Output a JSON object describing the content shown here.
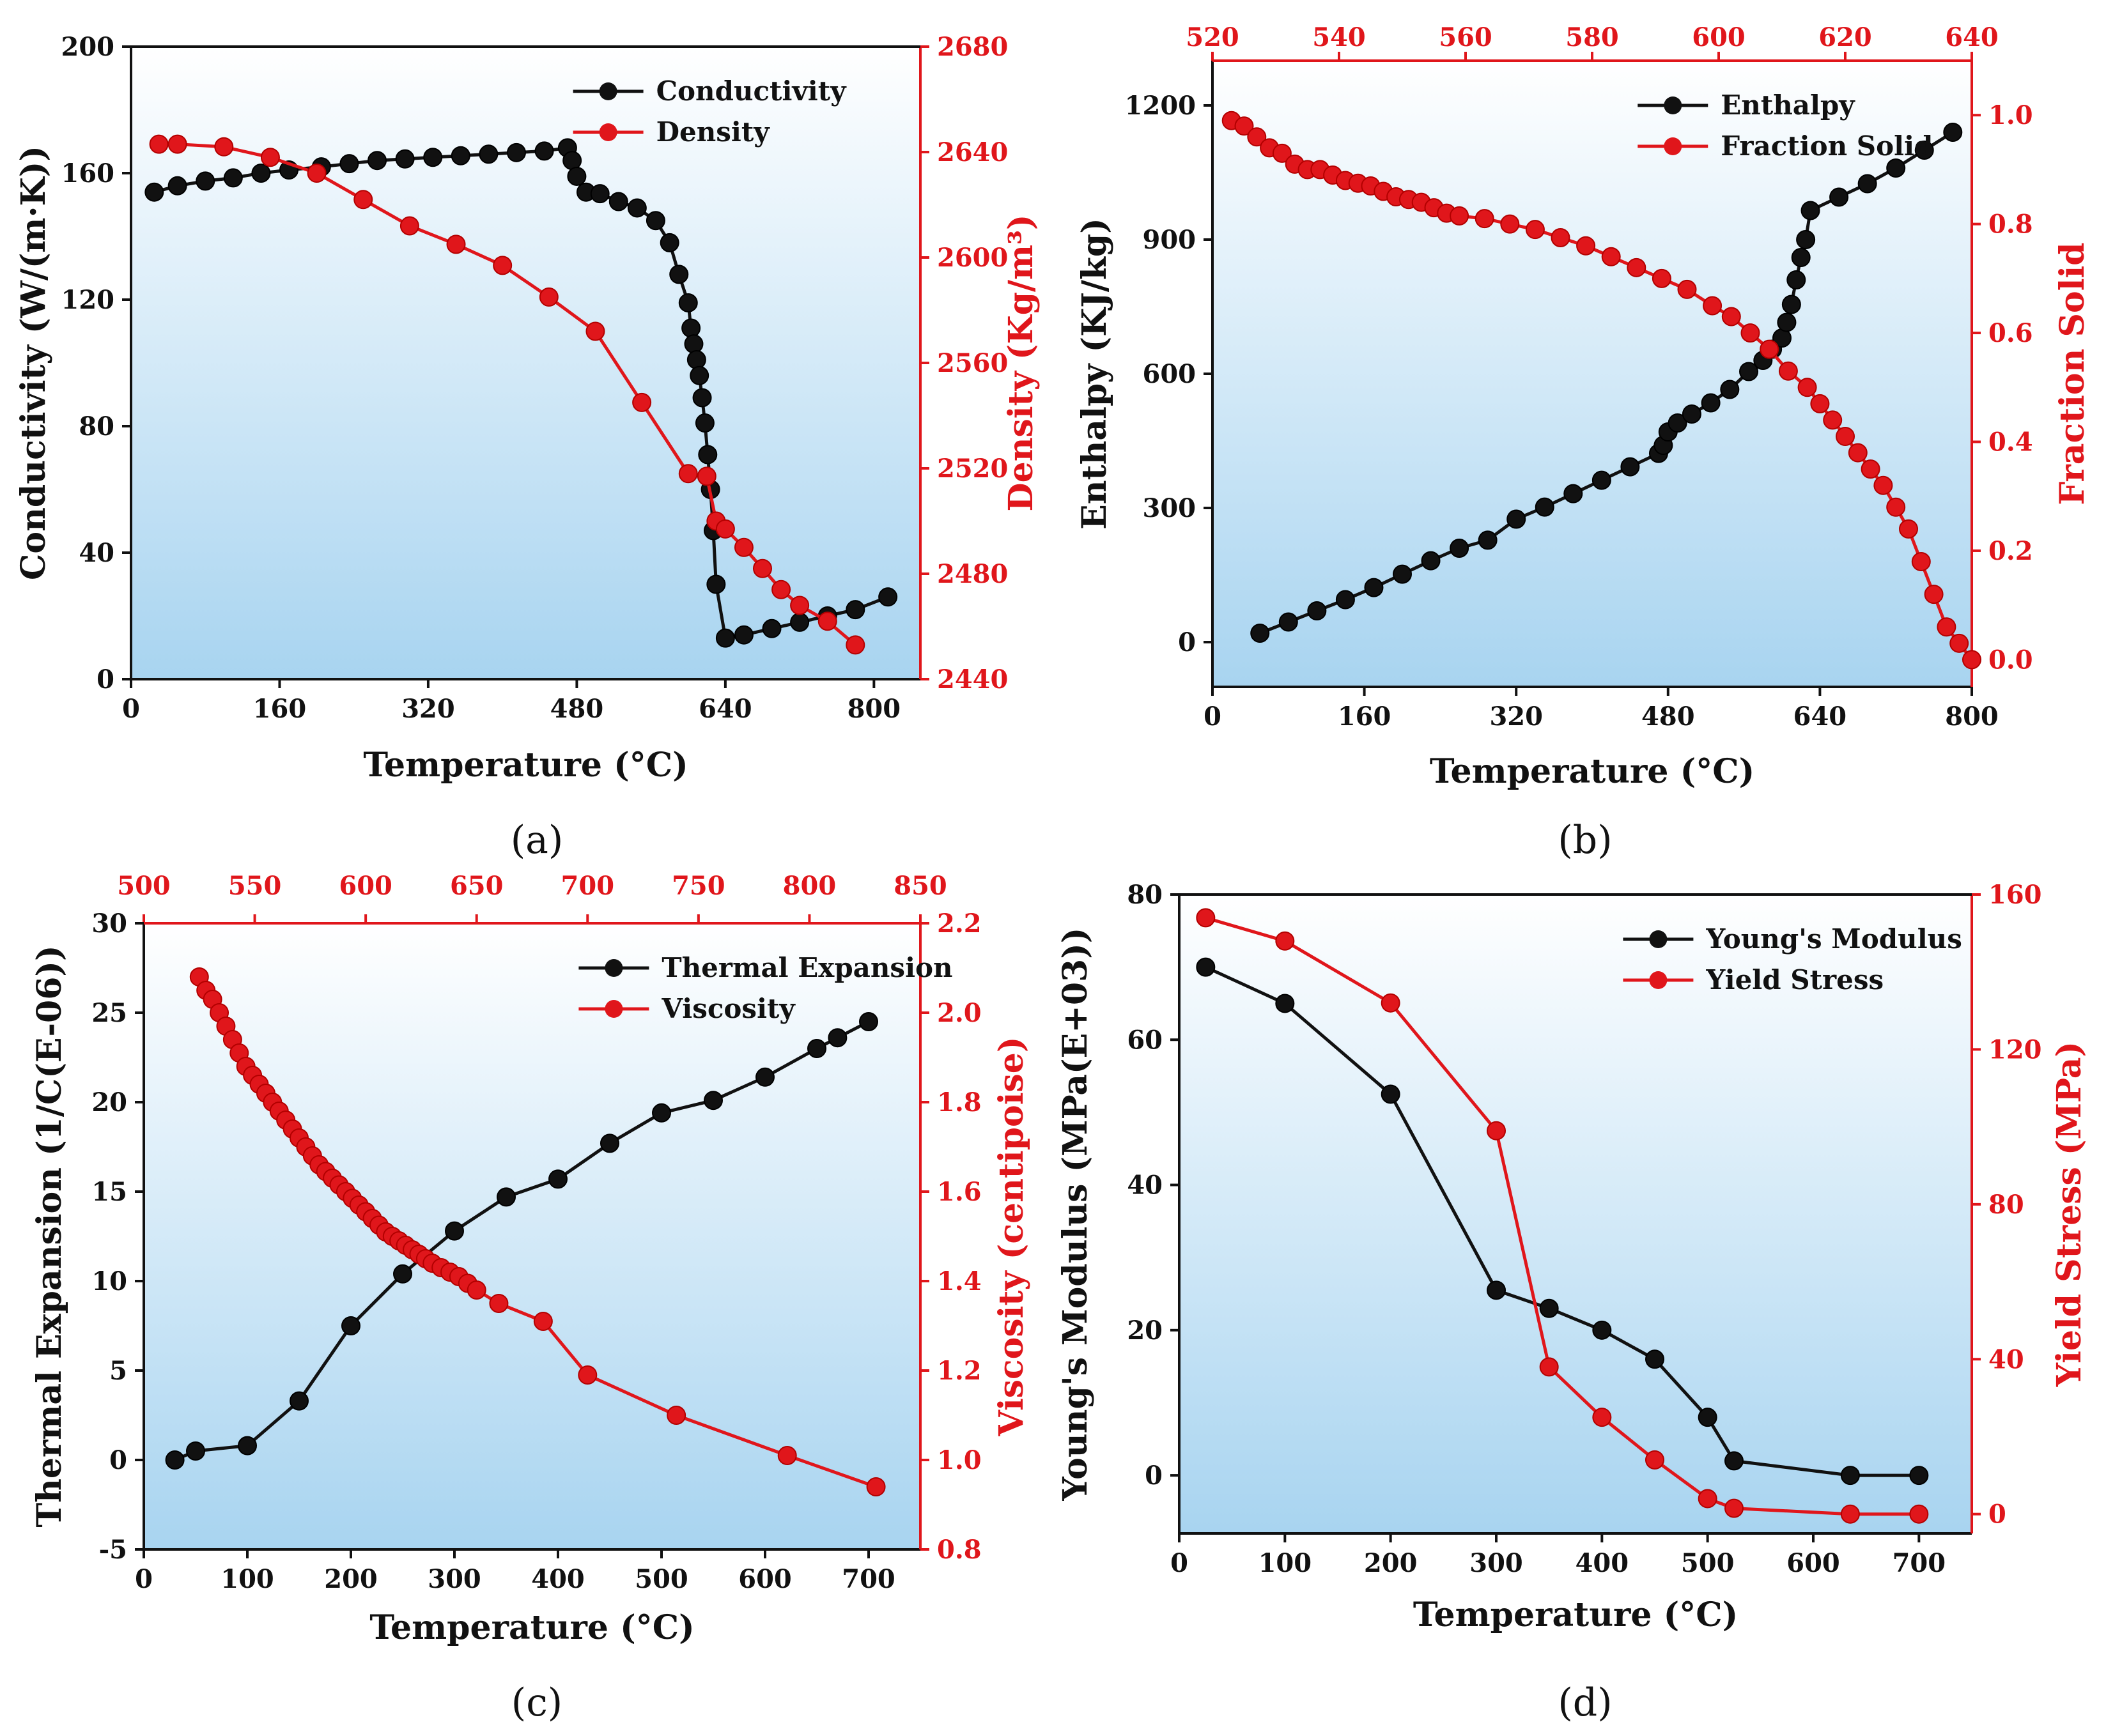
{
  "colors": {
    "left": "#111111",
    "right": "#e0161b",
    "bg_top": "#ffffff",
    "bg_bottom": "#a8d4f0"
  },
  "chart_data": [
    {
      "panel": "a",
      "caption": "(a)",
      "type": "line",
      "xlabel": "Temperature (°C)",
      "ylabel_left": "Conductivity (W/(m·K))",
      "ylabel_right": "Density (Kg/m³)",
      "x_ticks": [
        "0",
        "160",
        "320",
        "480",
        "640",
        "800"
      ],
      "y_left_ticks": [
        "0",
        "40",
        "80",
        "120",
        "160",
        "200"
      ],
      "y_right_ticks": [
        "2440",
        "2480",
        "2520",
        "2560",
        "2600",
        "2640",
        "2680"
      ],
      "legend": [
        "Conductivity",
        "Density"
      ],
      "series": [
        {
          "name": "Conductivity",
          "axis": "left",
          "x": [
            25,
            50,
            80,
            110,
            140,
            170,
            205,
            235,
            265,
            295,
            325,
            355,
            385,
            415,
            445,
            470,
            475,
            480,
            490,
            505,
            525,
            545,
            565,
            580,
            590,
            600,
            603,
            606,
            609,
            612,
            615,
            618,
            621,
            624,
            627,
            630,
            640,
            660,
            690,
            720,
            750,
            780,
            815
          ],
          "y": [
            154,
            156,
            157.5,
            158.5,
            160,
            161,
            162,
            163,
            164,
            164.5,
            165,
            165.5,
            166,
            166.5,
            167,
            168,
            164,
            159,
            154,
            153.5,
            151,
            149,
            145,
            138,
            128,
            119,
            111,
            106,
            101,
            96,
            89,
            81,
            71,
            60,
            47,
            30,
            13,
            14,
            16,
            18,
            20,
            22,
            26
          ]
        },
        {
          "name": "Density",
          "axis": "right",
          "x": [
            30,
            50,
            100,
            150,
            200,
            250,
            300,
            350,
            400,
            450,
            500,
            550,
            600,
            620,
            630,
            640,
            660,
            680,
            700,
            720,
            750,
            780
          ],
          "y": [
            2643,
            2643,
            2642,
            2638,
            2632,
            2622,
            2612,
            2605,
            2597,
            2585,
            2572,
            2545,
            2518,
            2517,
            2500,
            2497,
            2490,
            2482,
            2474,
            2468,
            2462,
            2453
          ]
        }
      ],
      "xlim": [
        0,
        850
      ],
      "ylim_left": [
        0,
        200
      ],
      "ylim_right": [
        2440,
        2680
      ]
    },
    {
      "panel": "b",
      "caption": "(b)",
      "type": "line",
      "xlabel": "Temperature (°C)",
      "ylabel_left": "Enthalpy (KJ/kg)",
      "ylabel_right": "Fraction Solid",
      "x_ticks": [
        "0",
        "160",
        "320",
        "480",
        "640",
        "800"
      ],
      "x_top_ticks": [
        "520",
        "540",
        "560",
        "580",
        "600",
        "620",
        "640"
      ],
      "y_left_ticks": [
        "0",
        "300",
        "600",
        "900",
        "1200"
      ],
      "y_right_ticks": [
        "0.0",
        "0.2",
        "0.4",
        "0.6",
        "0.8",
        "1.0"
      ],
      "legend": [
        "Enthalpy",
        "Fraction Solid"
      ],
      "series": [
        {
          "name": "Enthalpy",
          "axis": "left",
          "x": [
            50,
            80,
            110,
            140,
            170,
            200,
            230,
            260,
            290,
            320,
            350,
            380,
            410,
            440,
            470,
            475,
            480,
            490,
            505,
            525,
            545,
            565,
            580,
            590,
            600,
            605,
            610,
            615,
            620,
            625,
            630,
            660,
            690,
            720,
            750,
            780
          ],
          "y": [
            20,
            45,
            70,
            95,
            122,
            152,
            182,
            210,
            228,
            275,
            302,
            332,
            362,
            392,
            422,
            440,
            470,
            490,
            510,
            535,
            565,
            605,
            630,
            655,
            680,
            715,
            755,
            810,
            860,
            900,
            965,
            995,
            1025,
            1060,
            1100,
            1140
          ]
        },
        {
          "name": "Fraction Solid",
          "axis": "right",
          "x": [
            523,
            525,
            527,
            529,
            531,
            533,
            535,
            537,
            539,
            541,
            543,
            545,
            547,
            549,
            551,
            553,
            555,
            557,
            559,
            563,
            567,
            571,
            575,
            579,
            583,
            587,
            591,
            595,
            599,
            602,
            605,
            608,
            611,
            614,
            616,
            618,
            620,
            622,
            624,
            626,
            628,
            630,
            632,
            634,
            636,
            638,
            640
          ],
          "y": [
            0.99,
            0.98,
            0.96,
            0.94,
            0.93,
            0.91,
            0.9,
            0.9,
            0.89,
            0.88,
            0.875,
            0.87,
            0.86,
            0.85,
            0.845,
            0.84,
            0.83,
            0.82,
            0.815,
            0.81,
            0.8,
            0.79,
            0.775,
            0.76,
            0.74,
            0.72,
            0.7,
            0.68,
            0.65,
            0.63,
            0.6,
            0.57,
            0.53,
            0.5,
            0.47,
            0.44,
            0.41,
            0.38,
            0.35,
            0.32,
            0.28,
            0.24,
            0.18,
            0.12,
            0.06,
            0.03,
            0.0
          ]
        }
      ],
      "xlim": [
        0,
        800
      ],
      "x_top_lim": [
        520,
        640
      ],
      "ylim_left": [
        -100,
        1300
      ],
      "ylim_right": [
        -0.05,
        1.1
      ]
    },
    {
      "panel": "c",
      "caption": "(c)",
      "type": "line",
      "xlabel": "Temperature (°C)",
      "ylabel_left": "Thermal Expansion (1/C(E-06))",
      "ylabel_right": "Viscosity (centipoise)",
      "x_ticks": [
        "0",
        "100",
        "200",
        "300",
        "400",
        "500",
        "600",
        "700"
      ],
      "x_top_ticks": [
        "500",
        "550",
        "600",
        "650",
        "700",
        "750",
        "800",
        "850"
      ],
      "y_left_ticks": [
        "-5",
        "0",
        "5",
        "10",
        "15",
        "20",
        "25",
        "30"
      ],
      "y_right_ticks": [
        "0.8",
        "1.0",
        "1.2",
        "1.4",
        "1.6",
        "1.8",
        "2.0",
        "2.2"
      ],
      "legend": [
        "Thermal Expansion",
        "Viscosity"
      ],
      "series": [
        {
          "name": "Thermal Expansion",
          "axis": "left",
          "x": [
            30,
            50,
            100,
            150,
            200,
            250,
            300,
            350,
            400,
            450,
            500,
            550,
            600,
            650,
            670,
            700
          ],
          "y": [
            0,
            0.5,
            0.8,
            3.3,
            7.5,
            10.4,
            12.8,
            14.7,
            15.7,
            17.7,
            19.4,
            20.1,
            21.4,
            23,
            23.6,
            24.5
          ]
        },
        {
          "name": "Viscosity",
          "axis": "right",
          "x": [
            525,
            528,
            531,
            534,
            537,
            540,
            543,
            546,
            549,
            552,
            555,
            558,
            561,
            564,
            567,
            570,
            573,
            576,
            579,
            582,
            585,
            588,
            591,
            594,
            597,
            600,
            603,
            606,
            609,
            612,
            615,
            618,
            621,
            624,
            627,
            630,
            634,
            638,
            642,
            646,
            650,
            660,
            680,
            700,
            740,
            790,
            830
          ],
          "y": [
            2.08,
            2.05,
            2.03,
            2.0,
            1.97,
            1.94,
            1.91,
            1.88,
            1.86,
            1.84,
            1.82,
            1.8,
            1.78,
            1.76,
            1.74,
            1.72,
            1.7,
            1.68,
            1.66,
            1.645,
            1.63,
            1.615,
            1.6,
            1.585,
            1.57,
            1.555,
            1.54,
            1.525,
            1.51,
            1.5,
            1.49,
            1.48,
            1.47,
            1.46,
            1.45,
            1.44,
            1.43,
            1.42,
            1.41,
            1.395,
            1.38,
            1.35,
            1.31,
            1.19,
            1.1,
            1.01,
            0.94
          ]
        }
      ],
      "xlim": [
        0,
        750
      ],
      "x_top_lim": [
        500,
        850
      ],
      "ylim_left": [
        -5,
        30
      ],
      "ylim_right": [
        0.8,
        2.2
      ]
    },
    {
      "panel": "d",
      "caption": "(d)",
      "type": "line",
      "xlabel": "Temperature (°C)",
      "ylabel_left": "Young's Modulus (MPa(E+03))",
      "ylabel_right": "Yield Stress (MPa)",
      "x_ticks": [
        "0",
        "100",
        "200",
        "300",
        "400",
        "500",
        "600",
        "700"
      ],
      "y_left_ticks": [
        "0",
        "20",
        "40",
        "60",
        "80"
      ],
      "y_right_ticks": [
        "0",
        "40",
        "80",
        "120",
        "160"
      ],
      "legend": [
        "Young's Modulus",
        "Yield Stress"
      ],
      "series": [
        {
          "name": "Young's Modulus",
          "axis": "left",
          "x": [
            25,
            100,
            200,
            300,
            350,
            400,
            450,
            500,
            525,
            635,
            700
          ],
          "y": [
            70,
            65,
            52.5,
            25.5,
            23,
            20,
            16,
            8,
            2,
            0,
            0
          ]
        },
        {
          "name": "Yield Stress",
          "axis": "right",
          "x": [
            25,
            100,
            200,
            300,
            350,
            400,
            450,
            500,
            525,
            635,
            700
          ],
          "y": [
            154,
            148,
            132,
            99,
            38,
            25,
            14,
            4,
            1.5,
            0,
            0
          ]
        }
      ],
      "xlim": [
        0,
        750
      ],
      "ylim_left": [
        -8,
        80
      ],
      "ylim_right": [
        -5,
        160
      ]
    }
  ]
}
